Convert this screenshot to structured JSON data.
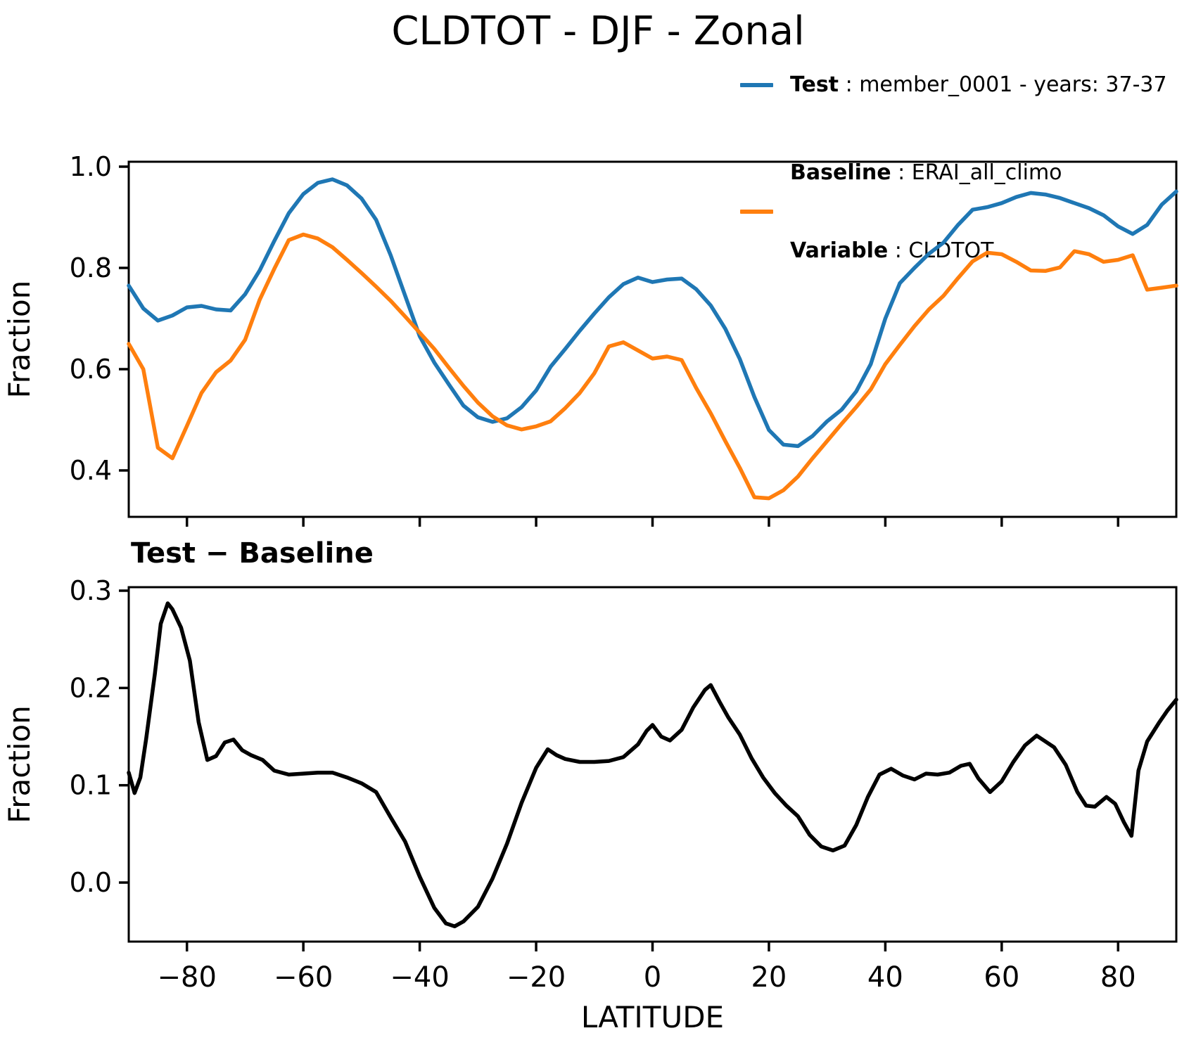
{
  "figure": {
    "title": "CLDTOT - DJF - Zonal"
  },
  "legend": {
    "test": {
      "bold": "Test",
      "rest": " : member_0001 - years: 37-37",
      "color": "#1f77b4"
    },
    "baseline": {
      "bold": "Baseline",
      "rest": " : ERAI_all_climo",
      "color": "#ff7f0e"
    },
    "variable": {
      "bold": "Variable",
      "rest": " : CLDTOT"
    }
  },
  "chart_data": [
    {
      "type": "line",
      "title": "CLDTOT - DJF - Zonal",
      "ylabel": "Fraction",
      "xlabel": "",
      "xlim": [
        -90,
        90
      ],
      "ylim": [
        0.308,
        1.01
      ],
      "grid": false,
      "legend_position": "upper right outside",
      "yticks": [
        1.0,
        0.8,
        0.6,
        0.4
      ],
      "ytick_labels": [
        "1.0",
        "0.8",
        "0.6",
        "0.4"
      ],
      "xticks": [
        -80,
        -60,
        -40,
        -20,
        0,
        20,
        40,
        60,
        80
      ],
      "xtick_labels": [],
      "show_xtick_labels": false,
      "x": [
        -90,
        -87.5,
        -85,
        -82.5,
        -80,
        -77.5,
        -75,
        -72.5,
        -70,
        -67.5,
        -65,
        -62.5,
        -60,
        -57.5,
        -55,
        -52.5,
        -50,
        -47.5,
        -45,
        -42.5,
        -40,
        -37.5,
        -35,
        -32.5,
        -30,
        -27.5,
        -25,
        -22.5,
        -20,
        -17.5,
        -15,
        -12.5,
        -10,
        -7.5,
        -5,
        -2.5,
        0,
        2.5,
        5,
        7.5,
        10,
        12.5,
        15,
        17.5,
        20,
        22.5,
        25,
        27.5,
        30,
        32.5,
        35,
        37.5,
        40,
        42.5,
        45,
        47.5,
        50,
        52.5,
        55,
        57.5,
        60,
        62.5,
        65,
        67.5,
        70,
        72.5,
        75,
        77.5,
        80,
        82.5,
        85,
        87.5,
        90
      ],
      "series": [
        {
          "name": "Test",
          "color": "#1f77b4",
          "values": [
            0.765,
            0.72,
            0.696,
            0.706,
            0.722,
            0.725,
            0.718,
            0.716,
            0.748,
            0.795,
            0.853,
            0.908,
            0.946,
            0.968,
            0.975,
            0.963,
            0.937,
            0.895,
            0.825,
            0.745,
            0.665,
            0.613,
            0.57,
            0.528,
            0.505,
            0.496,
            0.503,
            0.525,
            0.558,
            0.605,
            0.64,
            0.676,
            0.71,
            0.742,
            0.768,
            0.781,
            0.772,
            0.777,
            0.779,
            0.758,
            0.726,
            0.68,
            0.62,
            0.545,
            0.48,
            0.451,
            0.448,
            0.468,
            0.497,
            0.52,
            0.556,
            0.61,
            0.7,
            0.77,
            0.8,
            0.828,
            0.85,
            0.885,
            0.915,
            0.92,
            0.928,
            0.94,
            0.948,
            0.945,
            0.938,
            0.928,
            0.918,
            0.904,
            0.882,
            0.867,
            0.885,
            0.925,
            0.951
          ]
        },
        {
          "name": "Baseline",
          "color": "#ff7f0e",
          "values": [
            0.65,
            0.6,
            0.445,
            0.424,
            0.488,
            0.553,
            0.594,
            0.617,
            0.658,
            0.737,
            0.798,
            0.855,
            0.866,
            0.858,
            0.841,
            0.816,
            0.79,
            0.763,
            0.735,
            0.704,
            0.672,
            0.64,
            0.603,
            0.567,
            0.534,
            0.507,
            0.489,
            0.481,
            0.487,
            0.497,
            0.523,
            0.553,
            0.592,
            0.645,
            0.653,
            0.637,
            0.621,
            0.625,
            0.618,
            0.563,
            0.513,
            0.458,
            0.405,
            0.347,
            0.345,
            0.361,
            0.388,
            0.424,
            0.458,
            0.492,
            0.525,
            0.56,
            0.61,
            0.648,
            0.685,
            0.718,
            0.745,
            0.78,
            0.813,
            0.83,
            0.827,
            0.812,
            0.795,
            0.794,
            0.801,
            0.833,
            0.827,
            0.812,
            0.816,
            0.825,
            0.757,
            0.761,
            0.765
          ]
        }
      ]
    },
    {
      "type": "line",
      "title": "Test − Baseline",
      "ylabel": "Fraction",
      "xlabel": "LATITUDE",
      "xlim": [
        -90,
        90
      ],
      "ylim": [
        -0.061,
        0.304
      ],
      "grid": false,
      "yticks": [
        0.3,
        0.2,
        0.1,
        0.0
      ],
      "ytick_labels": [
        "0.3",
        "0.2",
        "0.1",
        "0.0"
      ],
      "xticks": [
        -80,
        -60,
        -40,
        -20,
        0,
        20,
        40,
        60,
        80
      ],
      "xtick_labels": [
        "−80",
        "−60",
        "−40",
        "−20",
        "0",
        "20",
        "40",
        "60",
        "80"
      ],
      "show_xtick_labels": true,
      "x": [
        -90,
        -89,
        -88,
        -87,
        -85.5,
        -84.5,
        -83.3,
        -82.5,
        -81,
        -79.5,
        -78,
        -76.5,
        -75,
        -73.5,
        -72,
        -70.5,
        -69,
        -67,
        -65,
        -62.5,
        -60,
        -57.5,
        -55,
        -52.5,
        -50,
        -47.5,
        -45,
        -42.5,
        -40,
        -37.5,
        -35.5,
        -34,
        -32.5,
        -30,
        -27.5,
        -25,
        -22.5,
        -20,
        -18,
        -16.5,
        -15,
        -12.5,
        -10,
        -7.5,
        -5,
        -2.5,
        -1,
        0,
        1.5,
        3,
        5,
        7,
        9,
        10,
        11.5,
        13,
        15,
        17,
        19,
        21,
        23,
        25,
        27,
        29,
        31,
        33,
        35,
        37,
        39,
        41,
        43,
        45,
        47,
        49,
        51,
        53,
        54.5,
        56,
        58,
        60,
        62,
        64,
        66,
        67.5,
        69,
        71,
        73,
        74.5,
        76,
        78,
        79.5,
        81,
        82.3,
        83.5,
        85,
        87,
        88.5,
        90
      ],
      "series": [
        {
          "name": "Test - Baseline",
          "color": "#000000",
          "values": [
            0.113,
            0.092,
            0.108,
            0.148,
            0.215,
            0.266,
            0.287,
            0.281,
            0.262,
            0.228,
            0.165,
            0.126,
            0.13,
            0.144,
            0.147,
            0.136,
            0.131,
            0.126,
            0.115,
            0.111,
            0.112,
            0.113,
            0.113,
            0.108,
            0.102,
            0.093,
            0.067,
            0.042,
            0.006,
            -0.026,
            -0.042,
            -0.045,
            -0.04,
            -0.025,
            0.004,
            0.04,
            0.082,
            0.118,
            0.137,
            0.131,
            0.127,
            0.124,
            0.124,
            0.125,
            0.129,
            0.142,
            0.156,
            0.162,
            0.15,
            0.146,
            0.157,
            0.18,
            0.198,
            0.203,
            0.186,
            0.17,
            0.152,
            0.128,
            0.108,
            0.092,
            0.079,
            0.068,
            0.049,
            0.037,
            0.033,
            0.038,
            0.059,
            0.088,
            0.111,
            0.117,
            0.11,
            0.106,
            0.112,
            0.111,
            0.113,
            0.12,
            0.122,
            0.107,
            0.093,
            0.104,
            0.124,
            0.141,
            0.151,
            0.145,
            0.139,
            0.121,
            0.093,
            0.079,
            0.078,
            0.088,
            0.081,
            0.062,
            0.048,
            0.115,
            0.145,
            0.164,
            0.177,
            0.188
          ]
        }
      ]
    }
  ]
}
